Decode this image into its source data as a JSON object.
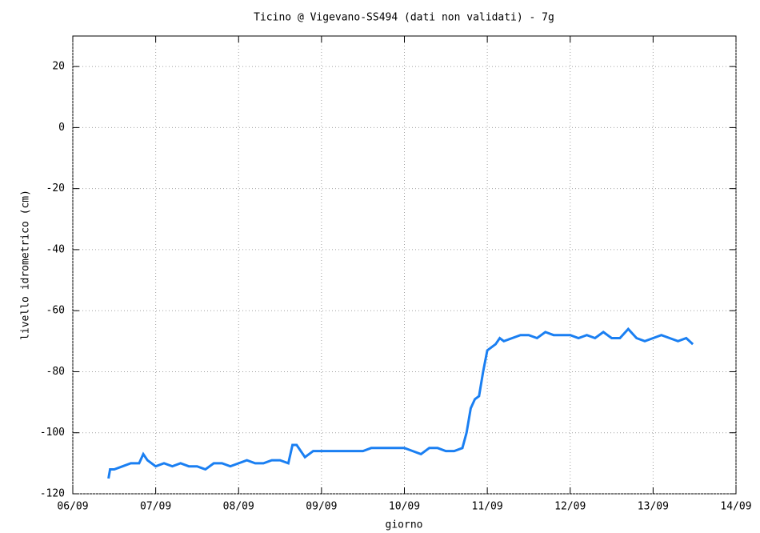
{
  "chart_data": {
    "type": "line",
    "title": "Ticino @ Vigevano-SS494 (dati non validati) - 7g",
    "xlabel": "giorno",
    "ylabel": "livello idrometrico (cm)",
    "color": "#1a7ff2",
    "grid": true,
    "x": [
      6.43,
      6.45,
      6.5,
      6.6,
      6.7,
      6.8,
      6.85,
      6.9,
      7.0,
      7.1,
      7.2,
      7.3,
      7.4,
      7.5,
      7.6,
      7.7,
      7.8,
      7.9,
      8.0,
      8.1,
      8.2,
      8.3,
      8.4,
      8.5,
      8.6,
      8.65,
      8.7,
      8.8,
      8.9,
      9.0,
      9.1,
      9.2,
      9.3,
      9.4,
      9.5,
      9.6,
      9.7,
      9.8,
      9.9,
      10.0,
      10.1,
      10.2,
      10.3,
      10.4,
      10.5,
      10.6,
      10.7,
      10.75,
      10.8,
      10.85,
      10.9,
      10.95,
      11.0,
      11.1,
      11.15,
      11.2,
      11.3,
      11.4,
      11.5,
      11.6,
      11.7,
      11.8,
      11.9,
      12.0,
      12.1,
      12.2,
      12.3,
      12.4,
      12.5,
      12.6,
      12.7,
      12.8,
      12.9,
      13.0,
      13.1,
      13.2,
      13.3,
      13.4,
      13.48
    ],
    "values": [
      -115,
      -112,
      -112,
      -111,
      -110,
      -110,
      -107,
      -109,
      -111,
      -110,
      -111,
      -110,
      -111,
      -111,
      -112,
      -110,
      -110,
      -111,
      -110,
      -109,
      -110,
      -110,
      -109,
      -109,
      -110,
      -104,
      -104,
      -108,
      -106,
      -106,
      -106,
      -106,
      -106,
      -106,
      -106,
      -105,
      -105,
      -105,
      -105,
      -105,
      -106,
      -107,
      -105,
      -105,
      -106,
      -106,
      -105,
      -100,
      -92,
      -89,
      -88,
      -80,
      -73,
      -71,
      -69,
      -70,
      -69,
      -68,
      -68,
      -69,
      -67,
      -68,
      -68,
      -68,
      -69,
      -68,
      -69,
      -67,
      -69,
      -69,
      -66,
      -69,
      -70,
      -69,
      -68,
      -69,
      -70,
      -69,
      -71
    ],
    "xlim": [
      6,
      14
    ],
    "xticks": [
      {
        "value": 6,
        "label": "06/09"
      },
      {
        "value": 7,
        "label": "07/09"
      },
      {
        "value": 8,
        "label": "08/09"
      },
      {
        "value": 9,
        "label": "09/09"
      },
      {
        "value": 10,
        "label": "10/09"
      },
      {
        "value": 11,
        "label": "11/09"
      },
      {
        "value": 12,
        "label": "12/09"
      },
      {
        "value": 13,
        "label": "13/09"
      },
      {
        "value": 14,
        "label": "14/09"
      }
    ],
    "ylim": [
      -120,
      30
    ],
    "yticks": [
      -120,
      -100,
      -80,
      -60,
      -40,
      -20,
      0,
      20
    ]
  }
}
